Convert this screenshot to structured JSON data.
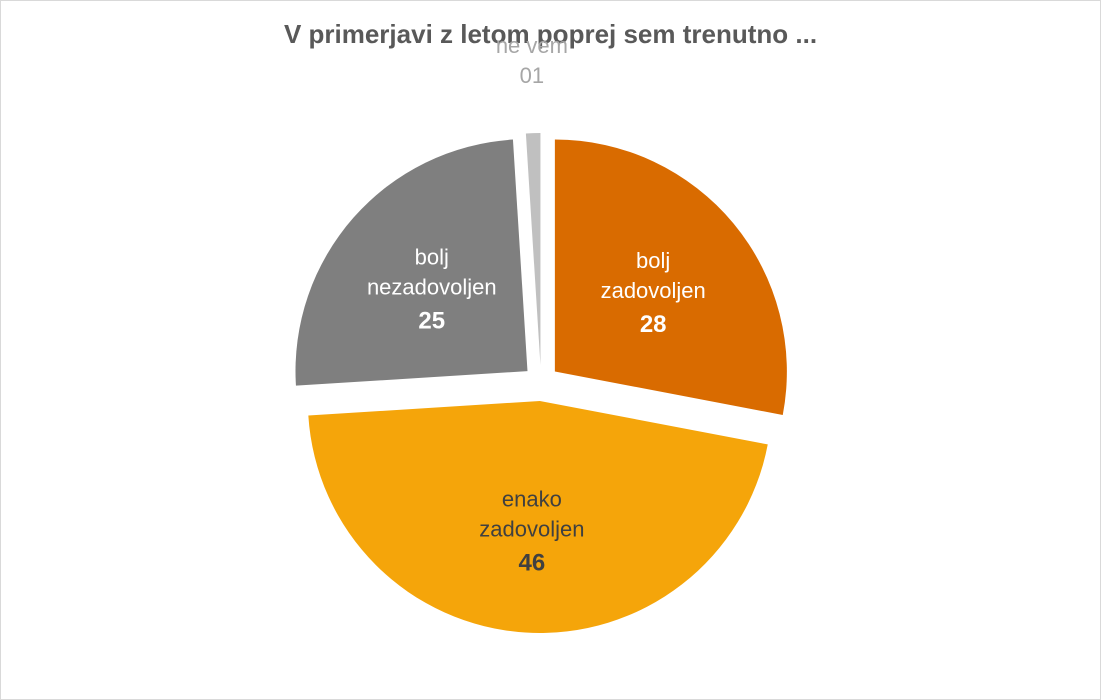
{
  "chart_data": {
    "type": "pie",
    "title": "V primerjavi z letom poprej sem trenutno ...",
    "slices": [
      {
        "label_lines": [
          "bolj",
          "zadovoljen"
        ],
        "value": 28,
        "value_label": "28",
        "color": "#d96b00",
        "text_color": "#ffffff"
      },
      {
        "label_lines": [
          "enako",
          "zadovoljen"
        ],
        "value": 46,
        "value_label": "46",
        "color": "#f5a50a",
        "text_color": "#404040"
      },
      {
        "label_lines": [
          "bolj",
          "nezadovoljen"
        ],
        "value": 25,
        "value_label": "25",
        "color": "#7f7f7f",
        "text_color": "#ffffff"
      },
      {
        "label_lines": [
          "ne vem"
        ],
        "value": 1,
        "value_label": "01",
        "color": "#c0c0c0",
        "text_color": "#a6a6a6"
      }
    ],
    "start_angle_deg": 0,
    "exploded": true,
    "legend": "none"
  }
}
